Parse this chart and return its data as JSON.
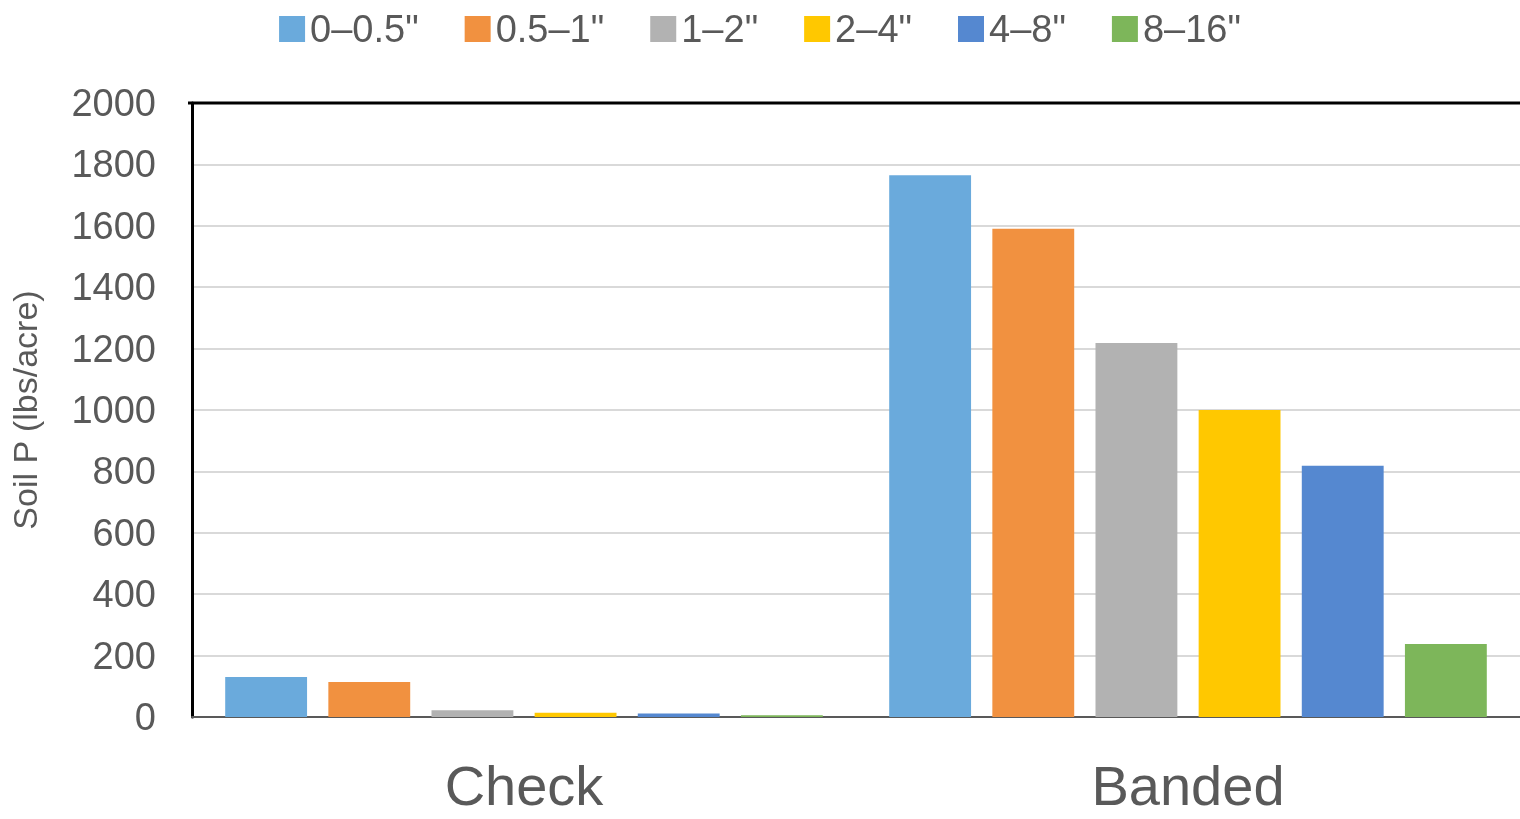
{
  "chart_data": {
    "type": "bar",
    "ylabel": "Soil P (lbs/acre)",
    "categories": [
      "Check",
      "Banded"
    ],
    "series": [
      {
        "name": "0–0.5\"",
        "color": "#6aaadc",
        "values": [
          130,
          1765
        ]
      },
      {
        "name": "0.5–1\"",
        "color": "#f19140",
        "values": [
          114,
          1590
        ]
      },
      {
        "name": "1–2\"",
        "color": "#b2b2b2",
        "values": [
          22,
          1218
        ]
      },
      {
        "name": "2–4\"",
        "color": "#ffc800",
        "values": [
          14,
          1000
        ]
      },
      {
        "name": "4–8\"",
        "color": "#5588d0",
        "values": [
          11,
          818
        ]
      },
      {
        "name": "8–16\"",
        "color": "#7db65a",
        "values": [
          6,
          238
        ]
      }
    ],
    "ylim": [
      0,
      2000
    ],
    "yticks": [
      0,
      200,
      400,
      600,
      800,
      1000,
      1200,
      1400,
      1600,
      1800,
      2000
    ],
    "grid": "y",
    "legend": "top"
  }
}
